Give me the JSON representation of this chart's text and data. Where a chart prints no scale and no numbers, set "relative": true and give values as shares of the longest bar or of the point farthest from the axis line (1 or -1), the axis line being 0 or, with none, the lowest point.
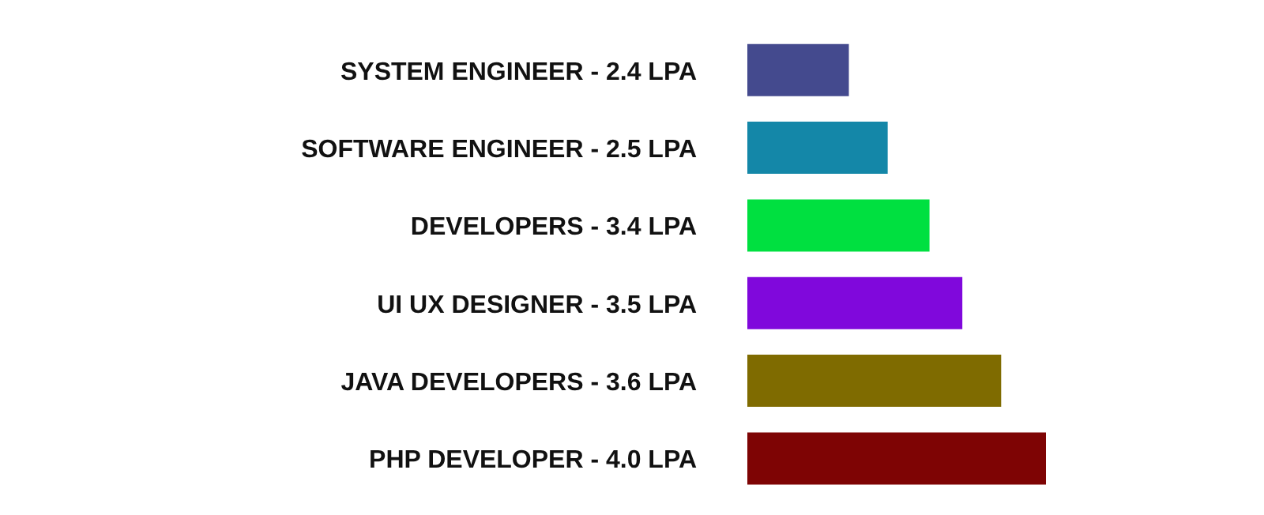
{
  "chart_data": {
    "type": "bar",
    "orientation": "horizontal",
    "tick_labels": "y",
    "categories": [
      "SYSTEM ENGINEER - 2.4 LPA",
      "SOFTWARE ENGINEER - 2.5 LPA",
      "DEVELOPERS - 3.4 LPA",
      "UI UX DESIGNER - 3.5 LPA",
      "JAVA DEVELOPERS - 3.6 LPA",
      "PHP DEVELOPER - 4.0 LPA"
    ],
    "relative": true,
    "values": [
      0.34,
      0.47,
      0.61,
      0.72,
      0.85,
      1
    ],
    "colors": [
      "#444a8e",
      "#1487a8",
      "#00e040",
      "#8008dc",
      "#7f6b00",
      "#7e0404"
    ]
  }
}
